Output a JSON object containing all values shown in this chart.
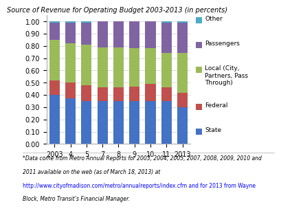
{
  "title": "Source of Revenue for Operating Budget 2003-2013 (in percents)",
  "years": [
    "2003",
    "4",
    "5",
    "7",
    "8",
    "9",
    "10",
    "11",
    "2013"
  ],
  "state": [
    0.4,
    0.37,
    0.35,
    0.35,
    0.35,
    0.35,
    0.35,
    0.35,
    0.3
  ],
  "federal": [
    0.12,
    0.13,
    0.13,
    0.11,
    0.11,
    0.12,
    0.14,
    0.11,
    0.12
  ],
  "local": [
    0.33,
    0.32,
    0.33,
    0.33,
    0.33,
    0.31,
    0.29,
    0.28,
    0.32
  ],
  "passengers": [
    0.14,
    0.17,
    0.18,
    0.21,
    0.21,
    0.22,
    0.22,
    0.25,
    0.25
  ],
  "other": [
    0.01,
    0.01,
    0.01,
    0.0,
    0.0,
    0.0,
    0.0,
    0.01,
    0.01
  ],
  "color_state": "#4472C4",
  "color_federal": "#C0504D",
  "color_local": "#9BBB59",
  "color_passengers": "#8064A2",
  "color_other": "#4BACC6",
  "footnote_line1": "*Data come from Metro Annual Reports for 2003, 2004, 2005, 2007, 2008, 2009, 2010 and",
  "footnote_line2": "2011 available on the web (as of March 18, 2013) at",
  "footnote_line3": "http://www.cityofmadison.com/metro/annualreports/index.cfm and for 2013 from Wayne",
  "footnote_line4": "Block, Metro Transit’s Financial Manager."
}
